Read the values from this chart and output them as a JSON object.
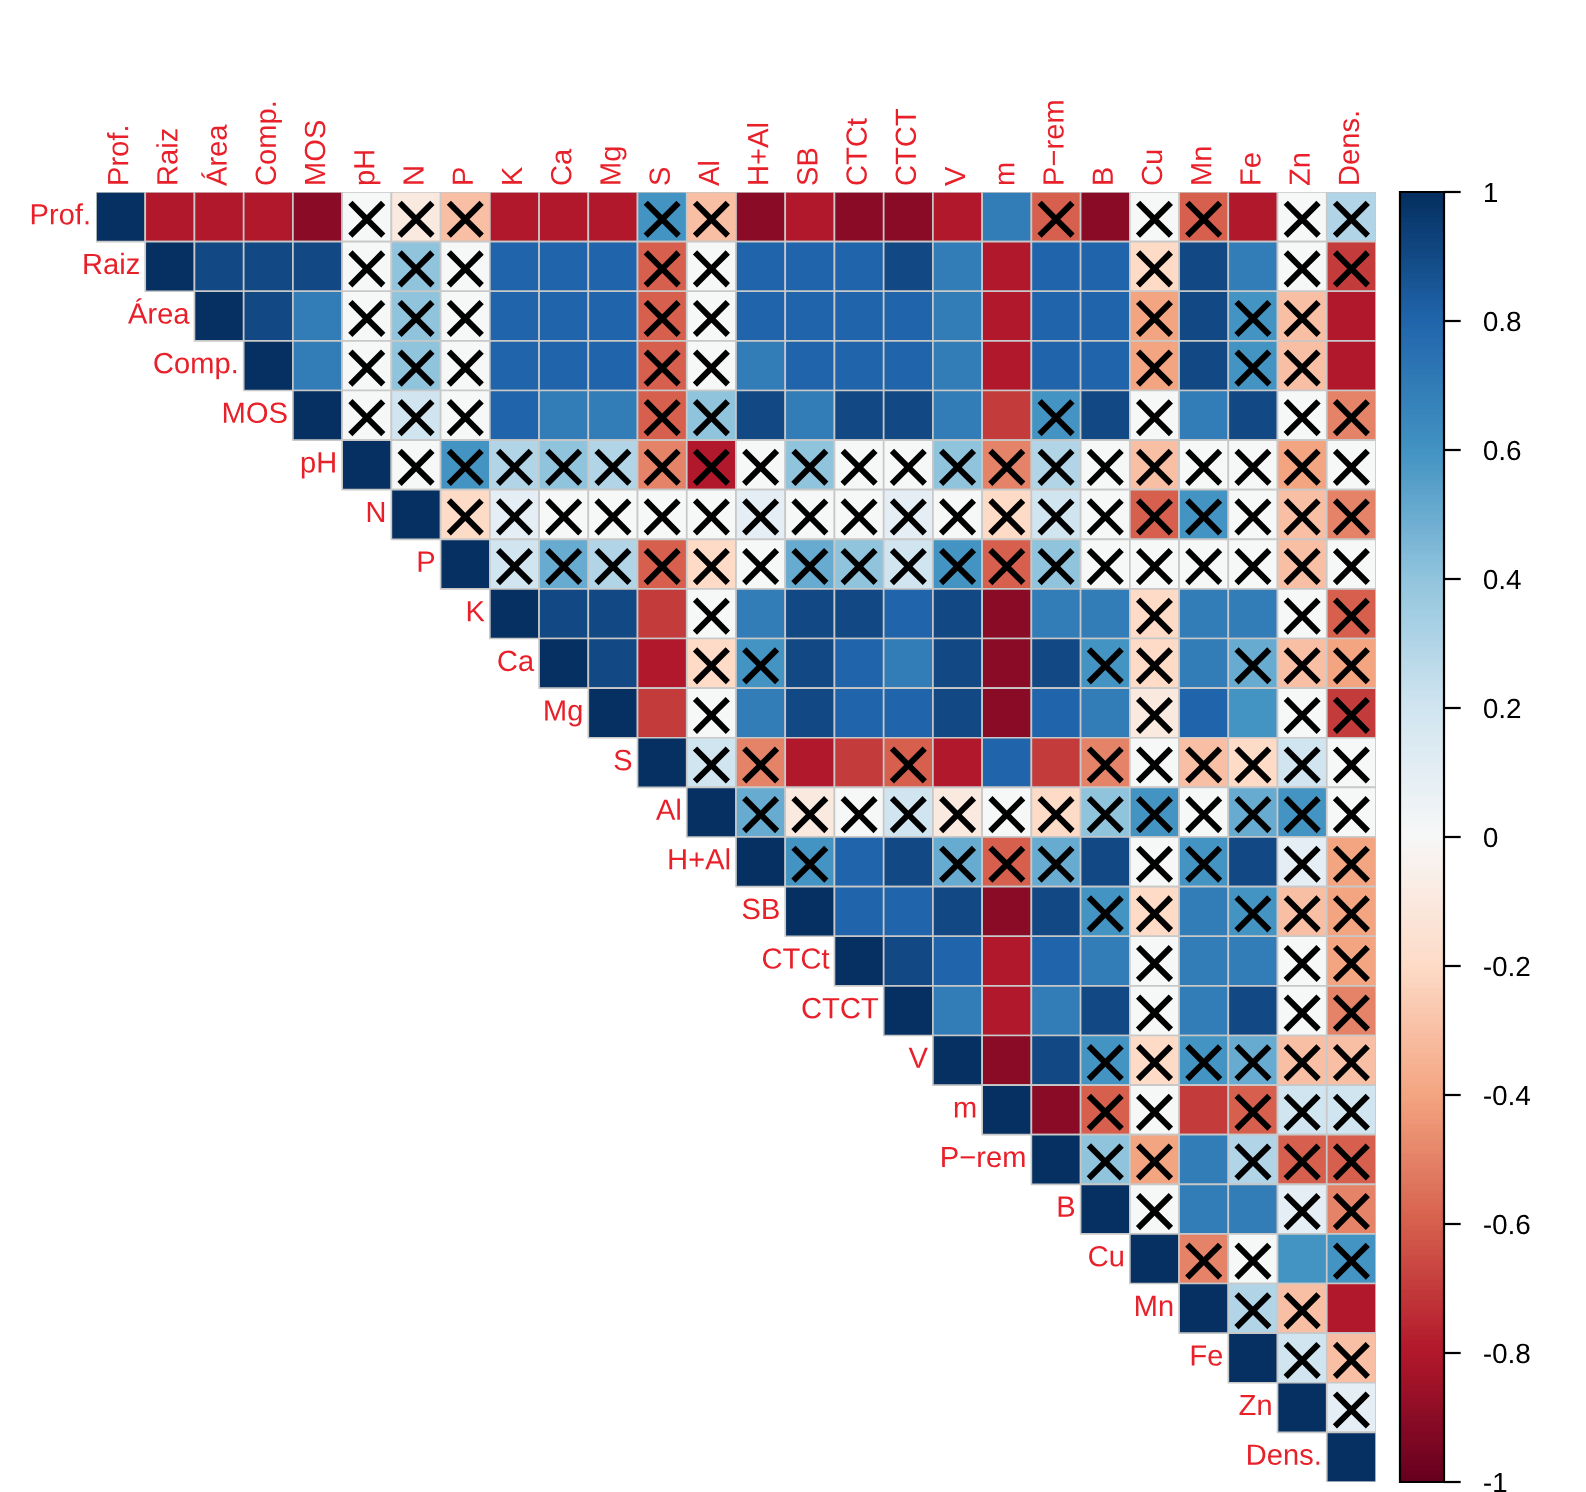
{
  "chart_data": {
    "type": "heatmap",
    "categories": [
      "Prof.",
      "Raiz",
      "Área",
      "Comp.",
      "MOS",
      "pH",
      "N",
      "P",
      "K",
      "Ca",
      "Mg",
      "S",
      "Al",
      "H+Al",
      "SB",
      "CTCt",
      "CTCT",
      "V",
      "m",
      "P−rem",
      "B",
      "Cu",
      "Mn",
      "Fe",
      "Zn",
      "Dens."
    ],
    "y_categories": [
      "Prof.",
      "Raiz",
      "Área",
      "Comp.",
      "MOS",
      "pH",
      "N",
      "P",
      "K",
      "Ca",
      "Mg",
      "S",
      "Al",
      "H+Al",
      "SB",
      "CTCt",
      "CTCT",
      "V",
      "m",
      "P−rem",
      "B",
      "Cu",
      "Mn",
      "Fe",
      "Zn",
      "Dens."
    ],
    "cells": [
      [
        1,
        -0.8,
        -0.8,
        -0.8,
        -0.9,
        0,
        -0.1,
        -0.3,
        -0.8,
        -0.8,
        -0.8,
        0.6,
        -0.3,
        -0.9,
        -0.8,
        -0.9,
        -0.9,
        -0.8,
        0.7,
        -0.6,
        -0.9,
        0,
        -0.6,
        -0.8,
        0,
        0.3
      ],
      [
        null,
        1,
        0.9,
        0.9,
        0.9,
        0,
        0.4,
        0,
        0.8,
        0.8,
        0.8,
        -0.6,
        0,
        0.8,
        0.8,
        0.8,
        0.9,
        0.7,
        -0.8,
        0.8,
        0.8,
        -0.2,
        0.9,
        0.7,
        0,
        -0.7
      ],
      [
        null,
        null,
        1,
        0.9,
        0.7,
        0,
        0.4,
        0,
        0.8,
        0.8,
        0.8,
        -0.6,
        0,
        0.8,
        0.8,
        0.8,
        0.8,
        0.7,
        -0.8,
        0.8,
        0.8,
        -0.4,
        0.9,
        0.6,
        -0.3,
        -0.8
      ],
      [
        null,
        null,
        null,
        1,
        0.7,
        0,
        0.4,
        0,
        0.8,
        0.8,
        0.8,
        -0.6,
        0,
        0.7,
        0.8,
        0.8,
        0.8,
        0.7,
        -0.8,
        0.8,
        0.8,
        -0.4,
        0.9,
        0.6,
        -0.3,
        -0.8
      ],
      [
        null,
        null,
        null,
        null,
        1,
        0,
        0.2,
        0,
        0.8,
        0.7,
        0.7,
        -0.6,
        0.4,
        0.9,
        0.7,
        0.9,
        0.9,
        0.7,
        -0.7,
        0.6,
        0.9,
        0,
        0.7,
        0.9,
        0,
        -0.5
      ],
      [
        null,
        null,
        null,
        null,
        null,
        1,
        0,
        0.6,
        0.3,
        0.4,
        0.3,
        -0.5,
        -0.8,
        0,
        0.4,
        0,
        0,
        0.4,
        -0.5,
        0.3,
        0,
        -0.3,
        0,
        0,
        -0.4,
        0
      ],
      [
        null,
        null,
        null,
        null,
        null,
        null,
        1,
        -0.2,
        0.1,
        0,
        0,
        0,
        0,
        0.1,
        0,
        0,
        0.1,
        0,
        -0.2,
        0.2,
        0,
        -0.6,
        0.6,
        0,
        -0.3,
        -0.5
      ],
      [
        null,
        null,
        null,
        null,
        null,
        null,
        null,
        1,
        0.2,
        0.5,
        0.3,
        -0.6,
        -0.2,
        0,
        0.5,
        0.4,
        0.2,
        0.6,
        -0.6,
        0.4,
        0,
        0,
        0,
        0,
        -0.3,
        0
      ],
      [
        null,
        null,
        null,
        null,
        null,
        null,
        null,
        null,
        1,
        0.9,
        0.9,
        -0.7,
        0,
        0.7,
        0.9,
        0.9,
        0.8,
        0.9,
        -0.9,
        0.7,
        0.7,
        -0.2,
        0.7,
        0.7,
        0,
        -0.6
      ],
      [
        null,
        null,
        null,
        null,
        null,
        null,
        null,
        null,
        null,
        1,
        0.9,
        -0.8,
        -0.2,
        0.6,
        0.9,
        0.8,
        0.7,
        0.9,
        -0.9,
        0.9,
        0.6,
        -0.2,
        0.7,
        0.5,
        -0.3,
        -0.4
      ],
      [
        null,
        null,
        null,
        null,
        null,
        null,
        null,
        null,
        null,
        null,
        1,
        -0.7,
        0,
        0.7,
        0.9,
        0.8,
        0.8,
        0.9,
        -0.9,
        0.8,
        0.7,
        -0.1,
        0.8,
        0.6,
        0,
        -0.7
      ],
      [
        null,
        null,
        null,
        null,
        null,
        null,
        null,
        null,
        null,
        null,
        null,
        1,
        0.2,
        -0.5,
        -0.8,
        -0.7,
        -0.6,
        -0.8,
        0.8,
        -0.7,
        -0.5,
        0,
        -0.3,
        -0.2,
        0.2,
        0
      ],
      [
        null,
        null,
        null,
        null,
        null,
        null,
        null,
        null,
        null,
        null,
        null,
        null,
        1,
        0.5,
        -0.1,
        0,
        0.2,
        -0.1,
        0,
        -0.2,
        0.4,
        0.6,
        0,
        0.5,
        0.6,
        0
      ],
      [
        null,
        null,
        null,
        null,
        null,
        null,
        null,
        null,
        null,
        null,
        null,
        null,
        null,
        1,
        0.6,
        0.8,
        0.9,
        0.5,
        -0.6,
        0.5,
        0.9,
        0,
        0.6,
        0.9,
        0.1,
        -0.4
      ],
      [
        null,
        null,
        null,
        null,
        null,
        null,
        null,
        null,
        null,
        null,
        null,
        null,
        null,
        null,
        1,
        0.8,
        0.8,
        0.9,
        -0.9,
        0.9,
        0.6,
        -0.2,
        0.7,
        0.6,
        -0.3,
        -0.4
      ],
      [
        null,
        null,
        null,
        null,
        null,
        null,
        null,
        null,
        null,
        null,
        null,
        null,
        null,
        null,
        null,
        1,
        0.9,
        0.8,
        -0.8,
        0.8,
        0.7,
        0,
        0.7,
        0.7,
        0,
        -0.4
      ],
      [
        null,
        null,
        null,
        null,
        null,
        null,
        null,
        null,
        null,
        null,
        null,
        null,
        null,
        null,
        null,
        null,
        1,
        0.7,
        -0.8,
        0.7,
        0.9,
        0,
        0.7,
        0.9,
        0,
        -0.5
      ],
      [
        null,
        null,
        null,
        null,
        null,
        null,
        null,
        null,
        null,
        null,
        null,
        null,
        null,
        null,
        null,
        null,
        null,
        1,
        -0.9,
        0.9,
        0.6,
        -0.2,
        0.6,
        0.5,
        -0.3,
        -0.3
      ],
      [
        null,
        null,
        null,
        null,
        null,
        null,
        null,
        null,
        null,
        null,
        null,
        null,
        null,
        null,
        null,
        null,
        null,
        null,
        1,
        -0.9,
        -0.6,
        0,
        -0.7,
        -0.6,
        0.2,
        0.2
      ],
      [
        null,
        null,
        null,
        null,
        null,
        null,
        null,
        null,
        null,
        null,
        null,
        null,
        null,
        null,
        null,
        null,
        null,
        null,
        null,
        1,
        0.4,
        -0.4,
        0.7,
        0.3,
        -0.6,
        -0.6
      ],
      [
        null,
        null,
        null,
        null,
        null,
        null,
        null,
        null,
        null,
        null,
        null,
        null,
        null,
        null,
        null,
        null,
        null,
        null,
        null,
        null,
        1,
        0,
        0.7,
        0.7,
        0.1,
        -0.5
      ],
      [
        null,
        null,
        null,
        null,
        null,
        null,
        null,
        null,
        null,
        null,
        null,
        null,
        null,
        null,
        null,
        null,
        null,
        null,
        null,
        null,
        null,
        1,
        -0.5,
        0,
        0.6,
        0.6
      ],
      [
        null,
        null,
        null,
        null,
        null,
        null,
        null,
        null,
        null,
        null,
        null,
        null,
        null,
        null,
        null,
        null,
        null,
        null,
        null,
        null,
        null,
        null,
        1,
        0.3,
        -0.3,
        -0.8
      ],
      [
        null,
        null,
        null,
        null,
        null,
        null,
        null,
        null,
        null,
        null,
        null,
        null,
        null,
        null,
        null,
        null,
        null,
        null,
        null,
        null,
        null,
        null,
        null,
        1,
        0.2,
        -0.3
      ],
      [
        null,
        null,
        null,
        null,
        null,
        null,
        null,
        null,
        null,
        null,
        null,
        null,
        null,
        null,
        null,
        null,
        null,
        null,
        null,
        null,
        null,
        null,
        null,
        null,
        1,
        0.1
      ],
      [
        null,
        null,
        null,
        null,
        null,
        null,
        null,
        null,
        null,
        null,
        null,
        null,
        null,
        null,
        null,
        null,
        null,
        null,
        null,
        null,
        null,
        null,
        null,
        null,
        null,
        1
      ]
    ],
    "cell_labels": [
      [
        null,
        null,
        null,
        null,
        null,
        "×",
        "×",
        "×",
        null,
        null,
        null,
        "×",
        "×",
        null,
        null,
        null,
        null,
        null,
        null,
        "×",
        null,
        "×",
        "×",
        null,
        "×",
        "×"
      ],
      [
        null,
        null,
        null,
        null,
        null,
        "×",
        "×",
        "×",
        null,
        null,
        null,
        "×",
        "×",
        null,
        null,
        null,
        null,
        null,
        null,
        null,
        null,
        "×",
        null,
        null,
        "×",
        "×"
      ],
      [
        null,
        null,
        null,
        null,
        null,
        "×",
        "×",
        "×",
        null,
        null,
        null,
        "×",
        "×",
        null,
        null,
        null,
        null,
        null,
        null,
        null,
        null,
        "×",
        null,
        "×",
        "×",
        null
      ],
      [
        null,
        null,
        null,
        null,
        null,
        "×",
        "×",
        "×",
        null,
        null,
        null,
        "×",
        "×",
        null,
        null,
        null,
        null,
        null,
        null,
        null,
        null,
        "×",
        null,
        "×",
        "×",
        null
      ],
      [
        null,
        null,
        null,
        null,
        null,
        "×",
        "×",
        "×",
        null,
        null,
        null,
        "×",
        "×",
        null,
        null,
        null,
        null,
        null,
        null,
        "×",
        null,
        "×",
        null,
        null,
        "×",
        "×"
      ],
      [
        null,
        null,
        null,
        null,
        null,
        null,
        "×",
        "×",
        "×",
        "×",
        "×",
        "×",
        "×",
        "×",
        "×",
        "×",
        "×",
        "×",
        "×",
        "×",
        "×",
        "×",
        "×",
        "×",
        "×",
        "×"
      ],
      [
        null,
        null,
        null,
        null,
        null,
        null,
        null,
        "×",
        "×",
        "×",
        "×",
        "×",
        "×",
        "×",
        "×",
        "×",
        "×",
        "×",
        "×",
        "×",
        "×",
        "×",
        "×",
        "×",
        "×",
        "×"
      ],
      [
        null,
        null,
        null,
        null,
        null,
        null,
        null,
        null,
        "×",
        "×",
        "×",
        "×",
        "×",
        "×",
        "×",
        "×",
        "×",
        "×",
        "×",
        "×",
        "×",
        "×",
        "×",
        "×",
        "×",
        "×"
      ],
      [
        null,
        null,
        null,
        null,
        null,
        null,
        null,
        null,
        null,
        null,
        null,
        null,
        "×",
        null,
        null,
        null,
        null,
        null,
        null,
        null,
        null,
        "×",
        null,
        null,
        "×",
        "×"
      ],
      [
        null,
        null,
        null,
        null,
        null,
        null,
        null,
        null,
        null,
        null,
        null,
        null,
        "×",
        "×",
        null,
        null,
        null,
        null,
        null,
        null,
        "×",
        "×",
        null,
        "×",
        "×",
        "×"
      ],
      [
        null,
        null,
        null,
        null,
        null,
        null,
        null,
        null,
        null,
        null,
        null,
        null,
        "×",
        null,
        null,
        null,
        null,
        null,
        null,
        null,
        null,
        "×",
        null,
        null,
        "×",
        "×"
      ],
      [
        null,
        null,
        null,
        null,
        null,
        null,
        null,
        null,
        null,
        null,
        null,
        null,
        "×",
        "×",
        null,
        null,
        "×",
        null,
        null,
        null,
        "×",
        "×",
        "×",
        "×",
        "×",
        "×"
      ],
      [
        null,
        null,
        null,
        null,
        null,
        null,
        null,
        null,
        null,
        null,
        null,
        null,
        null,
        "×",
        "×",
        "×",
        "×",
        "×",
        "×",
        "×",
        "×",
        "×",
        "×",
        "×",
        "×",
        "×"
      ],
      [
        null,
        null,
        null,
        null,
        null,
        null,
        null,
        null,
        null,
        null,
        null,
        null,
        null,
        null,
        "×",
        null,
        null,
        "×",
        "×",
        "×",
        null,
        "×",
        "×",
        null,
        "×",
        "×"
      ],
      [
        null,
        null,
        null,
        null,
        null,
        null,
        null,
        null,
        null,
        null,
        null,
        null,
        null,
        null,
        null,
        null,
        null,
        null,
        null,
        null,
        "×",
        "×",
        null,
        "×",
        "×",
        "×"
      ],
      [
        null,
        null,
        null,
        null,
        null,
        null,
        null,
        null,
        null,
        null,
        null,
        null,
        null,
        null,
        null,
        null,
        null,
        null,
        null,
        null,
        null,
        "×",
        null,
        null,
        "×",
        "×"
      ],
      [
        null,
        null,
        null,
        null,
        null,
        null,
        null,
        null,
        null,
        null,
        null,
        null,
        null,
        null,
        null,
        null,
        null,
        null,
        null,
        null,
        null,
        "×",
        null,
        null,
        "×",
        "×"
      ],
      [
        null,
        null,
        null,
        null,
        null,
        null,
        null,
        null,
        null,
        null,
        null,
        null,
        null,
        null,
        null,
        null,
        null,
        null,
        null,
        null,
        "×",
        "×",
        "×",
        "×",
        "×",
        "×"
      ],
      [
        null,
        null,
        null,
        null,
        null,
        null,
        null,
        null,
        null,
        null,
        null,
        null,
        null,
        null,
        null,
        null,
        null,
        null,
        null,
        null,
        "×",
        "×",
        null,
        "×",
        "×",
        "×"
      ],
      [
        null,
        null,
        null,
        null,
        null,
        null,
        null,
        null,
        null,
        null,
        null,
        null,
        null,
        null,
        null,
        null,
        null,
        null,
        null,
        null,
        "×",
        "×",
        null,
        "×",
        "×",
        "×"
      ],
      [
        null,
        null,
        null,
        null,
        null,
        null,
        null,
        null,
        null,
        null,
        null,
        null,
        null,
        null,
        null,
        null,
        null,
        null,
        null,
        null,
        null,
        "×",
        null,
        null,
        "×",
        "×"
      ],
      [
        null,
        null,
        null,
        null,
        null,
        null,
        null,
        null,
        null,
        null,
        null,
        null,
        null,
        null,
        null,
        null,
        null,
        null,
        null,
        null,
        null,
        null,
        "×",
        "×",
        null,
        "×"
      ],
      [
        null,
        null,
        null,
        null,
        null,
        null,
        null,
        null,
        null,
        null,
        null,
        null,
        null,
        null,
        null,
        null,
        null,
        null,
        null,
        null,
        null,
        null,
        null,
        "×",
        "×",
        null
      ],
      [
        null,
        null,
        null,
        null,
        null,
        null,
        null,
        null,
        null,
        null,
        null,
        null,
        null,
        null,
        null,
        null,
        null,
        null,
        null,
        null,
        null,
        null,
        null,
        null,
        "×",
        "×"
      ],
      [
        null,
        null,
        null,
        null,
        null,
        null,
        null,
        null,
        null,
        null,
        null,
        null,
        null,
        null,
        null,
        null,
        null,
        null,
        null,
        null,
        null,
        null,
        null,
        null,
        null,
        "×"
      ],
      [
        null,
        null,
        null,
        null,
        null,
        null,
        null,
        null,
        null,
        null,
        null,
        null,
        null,
        null,
        null,
        null,
        null,
        null,
        null,
        null,
        null,
        null,
        null,
        null,
        null,
        null
      ]
    ],
    "clim": [
      -1,
      1
    ],
    "cticks": [
      -1,
      -0.8,
      -0.6,
      -0.4,
      -0.2,
      0,
      0.2,
      0.4,
      0.6,
      0.8,
      1
    ]
  }
}
